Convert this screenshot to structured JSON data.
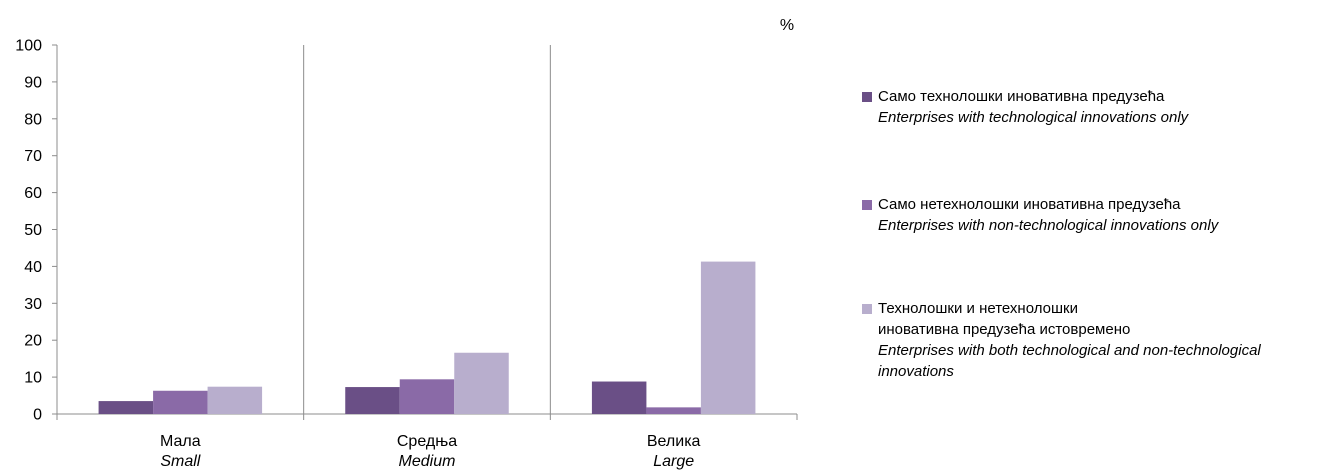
{
  "chart_data": {
    "type": "bar",
    "unit": "%",
    "ylim": [
      0,
      100
    ],
    "yticks": [
      0,
      10,
      20,
      30,
      40,
      50,
      60,
      70,
      80,
      90,
      100
    ],
    "categories": [
      {
        "label": "Мала",
        "label_en": "Small"
      },
      {
        "label": "Средња",
        "label_en": "Medium"
      },
      {
        "label": "Велика",
        "label_en": "Large"
      }
    ],
    "series": [
      {
        "name": "Само технолошки иновативна предузећа",
        "name_en": "Enterprises with technological innovations only",
        "color": "#6a4f86",
        "values": [
          3.5,
          7.3,
          8.8
        ]
      },
      {
        "name": "Само нетехнолошки иновативна предузећа",
        "name_en": "Enterprises with non-technological innovations only",
        "color": "#8a6aa7",
        "values": [
          6.3,
          9.4,
          1.8
        ]
      },
      {
        "name": "Технолошки и нетехнолошки иновативна предузећа истовремено",
        "name_en": "Enterprises with both technological and non-technological innovations",
        "color": "#b8aecd",
        "values": [
          7.4,
          16.6,
          41.3
        ]
      }
    ],
    "grid": false,
    "legend_position": "right"
  }
}
